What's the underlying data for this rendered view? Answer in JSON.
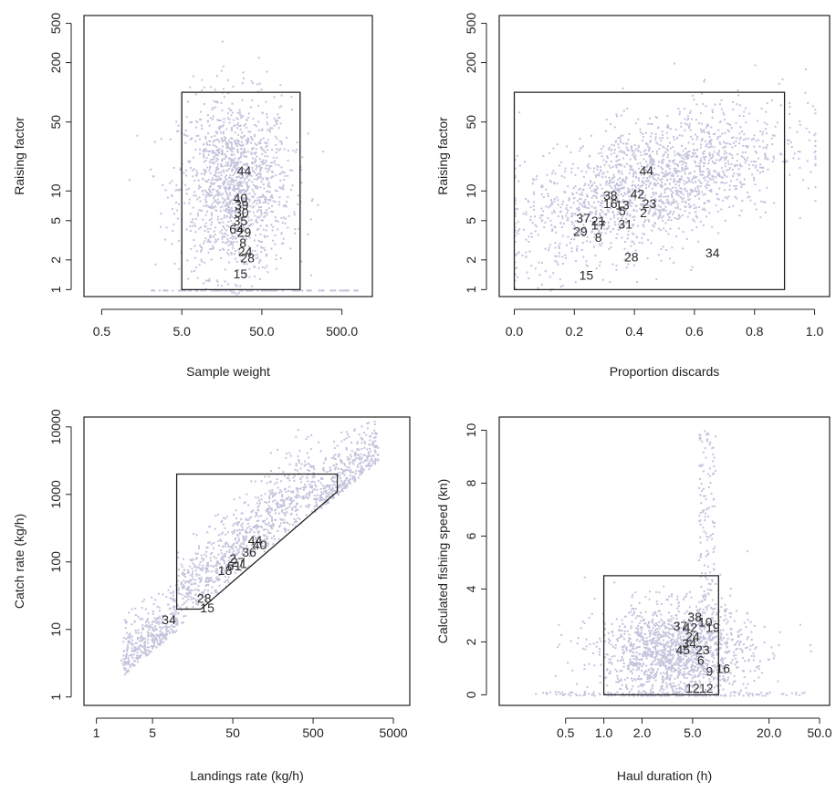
{
  "chart_data": [
    {
      "type": "scatter",
      "xlabel": "Sample weight",
      "ylabel": "Raising factor",
      "xscale": "log",
      "yscale": "log",
      "xlim": [
        0.3,
        1200
      ],
      "ylim": [
        0.85,
        600
      ],
      "xticks": [
        {
          "v": 0.5,
          "t": "0.5"
        },
        {
          "v": 5,
          "t": "5.0"
        },
        {
          "v": 50,
          "t": "50.0"
        },
        {
          "v": 500,
          "t": "500.0"
        }
      ],
      "yticks": [
        {
          "v": 1,
          "t": "1"
        },
        {
          "v": 2,
          "t": "2"
        },
        {
          "v": 5,
          "t": "5"
        },
        {
          "v": 10,
          "t": "10"
        },
        {
          "v": 50,
          "t": "50"
        },
        {
          "v": 200,
          "t": "200"
        },
        {
          "v": 500,
          "t": "500"
        }
      ],
      "filter_region": [
        [
          5,
          1
        ],
        [
          5,
          100
        ],
        [
          150,
          100
        ],
        [
          150,
          1
        ]
      ],
      "labels": [
        {
          "t": "44",
          "x": 30,
          "y": 16
        },
        {
          "t": "40",
          "x": 27,
          "y": 8.5
        },
        {
          "t": "39",
          "x": 28,
          "y": 7.2
        },
        {
          "t": "30",
          "x": 28,
          "y": 6.0
        },
        {
          "t": "35",
          "x": 27,
          "y": 5.0
        },
        {
          "t": "64",
          "x": 24,
          "y": 4.1
        },
        {
          "t": "29",
          "x": 30,
          "y": 3.8
        },
        {
          "t": "8",
          "x": 29,
          "y": 3.0
        },
        {
          "t": "24",
          "x": 31,
          "y": 2.45
        },
        {
          "t": "28",
          "x": 33,
          "y": 2.1
        },
        {
          "t": "15",
          "x": 27,
          "y": 1.45
        }
      ]
    },
    {
      "type": "scatter",
      "xlabel": "Proportion discards",
      "ylabel": "Raising factor",
      "yscale": "log",
      "xlim": [
        -0.05,
        1.05
      ],
      "ylim": [
        0.85,
        600
      ],
      "xticks": [
        {
          "v": 0,
          "t": "0.0"
        },
        {
          "v": 0.2,
          "t": "0.2"
        },
        {
          "v": 0.4,
          "t": "0.4"
        },
        {
          "v": 0.6,
          "t": "0.6"
        },
        {
          "v": 0.8,
          "t": "0.8"
        },
        {
          "v": 1.0,
          "t": "1.0"
        }
      ],
      "yticks": [
        {
          "v": 1,
          "t": "1"
        },
        {
          "v": 2,
          "t": "2"
        },
        {
          "v": 5,
          "t": "5"
        },
        {
          "v": 10,
          "t": "10"
        },
        {
          "v": 50,
          "t": "50"
        },
        {
          "v": 200,
          "t": "200"
        },
        {
          "v": 500,
          "t": "500"
        }
      ],
      "filter_region": [
        [
          0,
          1
        ],
        [
          0,
          100
        ],
        [
          0.9,
          100
        ],
        [
          0.9,
          1
        ]
      ],
      "labels": [
        {
          "t": "44",
          "x": 0.44,
          "y": 16
        },
        {
          "t": "38",
          "x": 0.32,
          "y": 9.0
        },
        {
          "t": "42",
          "x": 0.41,
          "y": 9.3
        },
        {
          "t": "16",
          "x": 0.32,
          "y": 7.5
        },
        {
          "t": "13",
          "x": 0.36,
          "y": 7.2
        },
        {
          "t": "23",
          "x": 0.45,
          "y": 7.5
        },
        {
          "t": "5",
          "x": 0.36,
          "y": 6.3
        },
        {
          "t": "2",
          "x": 0.43,
          "y": 6.0
        },
        {
          "t": "37",
          "x": 0.23,
          "y": 5.3
        },
        {
          "t": "21",
          "x": 0.28,
          "y": 5.0
        },
        {
          "t": "17",
          "x": 0.28,
          "y": 4.5
        },
        {
          "t": "31",
          "x": 0.37,
          "y": 4.6
        },
        {
          "t": "29",
          "x": 0.22,
          "y": 3.9
        },
        {
          "t": "8",
          "x": 0.28,
          "y": 3.4
        },
        {
          "t": "28",
          "x": 0.39,
          "y": 2.15
        },
        {
          "t": "34",
          "x": 0.66,
          "y": 2.35
        },
        {
          "t": "15",
          "x": 0.24,
          "y": 1.4
        }
      ]
    },
    {
      "type": "scatter",
      "xlabel": "Landings rate (kg/h)",
      "ylabel": "Catch rate (kg/h)",
      "xscale": "log",
      "yscale": "log",
      "xlim": [
        0.7,
        8000
      ],
      "ylim": [
        0.75,
        14000
      ],
      "xticks": [
        {
          "v": 1,
          "t": "1"
        },
        {
          "v": 5,
          "t": "5"
        },
        {
          "v": 50,
          "t": "50"
        },
        {
          "v": 500,
          "t": "500"
        },
        {
          "v": 5000,
          "t": "5000"
        }
      ],
      "yticks": [
        {
          "v": 1,
          "t": "1"
        },
        {
          "v": 10,
          "t": "10"
        },
        {
          "v": 100,
          "t": "100"
        },
        {
          "v": 1000,
          "t": "1000"
        },
        {
          "v": 10000,
          "t": "10000"
        }
      ],
      "filter_region": [
        [
          10,
          20
        ],
        [
          10,
          2000
        ],
        [
          1000,
          2000
        ],
        [
          1000,
          1100
        ],
        [
          20,
          20
        ]
      ],
      "labels": [
        {
          "t": "44",
          "x": 95,
          "y": 210
        },
        {
          "t": "40",
          "x": 108,
          "y": 180
        },
        {
          "t": "36",
          "x": 80,
          "y": 140
        },
        {
          "t": "2",
          "x": 50,
          "y": 112
        },
        {
          "t": "27",
          "x": 58,
          "y": 100
        },
        {
          "t": "61",
          "x": 52,
          "y": 88
        },
        {
          "t": "1",
          "x": 68,
          "y": 95
        },
        {
          "t": "18",
          "x": 40,
          "y": 75
        },
        {
          "t": "28",
          "x": 22,
          "y": 29
        },
        {
          "t": "15",
          "x": 24,
          "y": 21
        },
        {
          "t": "34",
          "x": 8,
          "y": 14
        }
      ]
    },
    {
      "type": "scatter",
      "xlabel": "Haul duration (h)",
      "ylabel": "Calculated fishing speed (kn)",
      "xscale": "log",
      "xlim": [
        0.15,
        60
      ],
      "ylim": [
        -0.4,
        10.5
      ],
      "xticks": [
        {
          "v": 0.5,
          "t": "0.5"
        },
        {
          "v": 1,
          "t": "1.0"
        },
        {
          "v": 2,
          "t": "2.0"
        },
        {
          "v": 5,
          "t": "5.0"
        },
        {
          "v": 20,
          "t": "20.0"
        },
        {
          "v": 50,
          "t": "50.0"
        }
      ],
      "yticks": [
        {
          "v": 0,
          "t": "0"
        },
        {
          "v": 2,
          "t": "2"
        },
        {
          "v": 4,
          "t": "4"
        },
        {
          "v": 6,
          "t": "6"
        },
        {
          "v": 8,
          "t": "8"
        },
        {
          "v": 10,
          "t": "10"
        }
      ],
      "filter_region": [
        [
          1,
          0
        ],
        [
          1,
          4.5
        ],
        [
          8,
          4.5
        ],
        [
          8,
          0
        ]
      ],
      "labels": [
        {
          "t": "38",
          "x": 5.2,
          "y": 2.95
        },
        {
          "t": "10",
          "x": 6.3,
          "y": 2.75
        },
        {
          "t": "37",
          "x": 4.0,
          "y": 2.6
        },
        {
          "t": "42",
          "x": 4.8,
          "y": 2.55
        },
        {
          "t": "19",
          "x": 7.2,
          "y": 2.55
        },
        {
          "t": "24",
          "x": 5.0,
          "y": 2.2
        },
        {
          "t": "34",
          "x": 4.7,
          "y": 1.95
        },
        {
          "t": "45",
          "x": 4.2,
          "y": 1.7
        },
        {
          "t": "23",
          "x": 6.0,
          "y": 1.7
        },
        {
          "t": "6",
          "x": 5.8,
          "y": 1.3
        },
        {
          "t": "9",
          "x": 6.8,
          "y": 0.9
        },
        {
          "t": "16",
          "x": 8.7,
          "y": 1.0
        },
        {
          "t": "12",
          "x": 5.0,
          "y": 0.25
        },
        {
          "t": "12",
          "x": 6.4,
          "y": 0.25
        }
      ]
    }
  ]
}
